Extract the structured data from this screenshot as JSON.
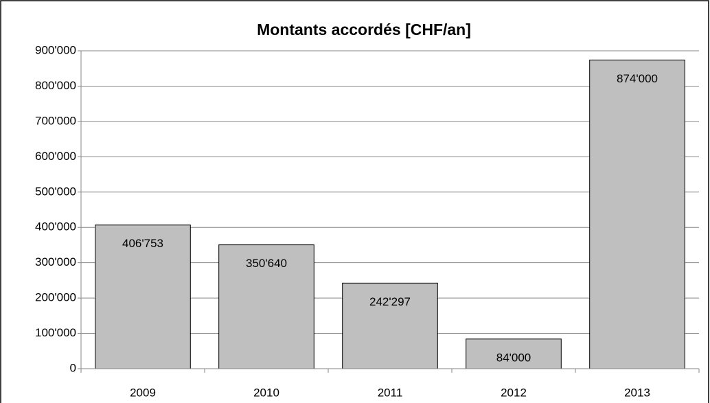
{
  "chart_data": {
    "type": "bar",
    "title": "Montants accordés [CHF/an]",
    "categories": [
      "2009",
      "2010",
      "2011",
      "2012",
      "2013"
    ],
    "values": [
      406753,
      350640,
      242297,
      84000,
      874000
    ],
    "value_labels": [
      "406'753",
      "350'640",
      "242'297",
      "84'000",
      "874'000"
    ],
    "color": "#bfbfbf",
    "ylim": [
      0,
      900000
    ],
    "yticks": [
      0,
      {
        "value": 100000,
        "label": "100'000"
      },
      {
        "value": 200000,
        "label": "200'000"
      },
      {
        "value": 300000,
        "label": "300'000"
      },
      {
        "value": 400000,
        "label": "400'000"
      },
      {
        "value": 500000,
        "label": "500'000"
      },
      {
        "value": 600000,
        "label": "600'000"
      },
      {
        "value": 700000,
        "label": "700'000"
      },
      {
        "value": 800000,
        "label": "800'000"
      },
      {
        "value": 900000,
        "label": "900'000"
      }
    ],
    "grid": true
  }
}
